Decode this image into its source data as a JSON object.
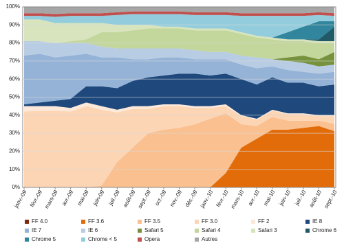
{
  "chart_data": {
    "type": "stacked_area",
    "categories": [
      "janv.-09",
      "févr.-09",
      "mars-09",
      "avr.-09",
      "mai-09",
      "juin-09",
      "juil.-09",
      "août-09",
      "sept.-09",
      "oct.-09",
      "nov.-09",
      "déc.-09",
      "janv.-10",
      "févr.-10",
      "mars-10",
      "avr.-10",
      "mai-10",
      "juin-10",
      "juil.-10",
      "août-10",
      "sept.-10"
    ],
    "ylim": [
      0,
      100
    ],
    "yticks": [
      {
        "value": 0,
        "label": "0%"
      },
      {
        "value": 10,
        "label": "10%"
      },
      {
        "value": 20,
        "label": "20%"
      },
      {
        "value": 30,
        "label": "30%"
      },
      {
        "value": 40,
        "label": "40%"
      },
      {
        "value": 50,
        "label": "50%"
      },
      {
        "value": 60,
        "label": "60%"
      },
      {
        "value": 70,
        "label": "70%"
      },
      {
        "value": 80,
        "label": "80%"
      },
      {
        "value": 90,
        "label": "90%"
      },
      {
        "value": 100,
        "label": "100%"
      }
    ],
    "grid": true,
    "series": [
      {
        "name": "FF 4.0",
        "color": "#7f2a0c",
        "values": [
          0,
          0,
          0,
          0,
          0,
          0,
          0,
          0,
          0,
          0,
          0,
          0,
          0,
          0,
          0,
          0,
          0,
          0,
          0,
          0,
          0.2
        ]
      },
      {
        "name": "FF 3.6",
        "color": "#e36c0a",
        "values": [
          0,
          0,
          0,
          0,
          0,
          0,
          0,
          0,
          0,
          0,
          0,
          0,
          0,
          8,
          22,
          27,
          32,
          32,
          33,
          34,
          31
        ]
      },
      {
        "name": "FF 3.5",
        "color": "#fac090",
        "values": [
          0,
          0,
          0,
          0,
          0,
          1,
          14,
          22,
          30,
          32,
          33,
          35,
          38,
          33,
          13,
          7,
          7,
          5,
          4,
          3,
          4
        ]
      },
      {
        "name": "FF 3.0",
        "color": "#fcd5b5",
        "values": [
          42,
          42.5,
          42.5,
          42,
          45,
          42,
          27.5,
          21.5,
          13.5,
          13,
          12,
          9,
          6,
          4,
          4.5,
          3.5,
          3.5,
          3.5,
          3.5,
          2.5,
          4.3
        ]
      },
      {
        "name": "FF 2",
        "color": "#fde9d9",
        "values": [
          3,
          2.5,
          2.5,
          2,
          2,
          2,
          1.5,
          1.5,
          1.5,
          1,
          1,
          1,
          1,
          1,
          0.5,
          0.5,
          0.5,
          0.5,
          0.5,
          0.5,
          0.5
        ]
      },
      {
        "name": "IE 8",
        "color": "#1f497d",
        "values": [
          1,
          2,
          3,
          5,
          9,
          11,
          12,
          14,
          16,
          16,
          17,
          18,
          17,
          17,
          20,
          19,
          18,
          17,
          17,
          16,
          17
        ]
      },
      {
        "name": "IE 7",
        "color": "#95b3d7",
        "values": [
          27,
          27,
          24,
          24,
          18,
          16,
          17,
          12,
          10,
          10,
          9,
          8,
          9,
          8,
          8,
          9,
          6,
          7,
          6,
          7,
          7
        ]
      },
      {
        "name": "IE 6",
        "color": "#b8cce4",
        "values": [
          8,
          7,
          8,
          7,
          6,
          6,
          5,
          6,
          6,
          5,
          5,
          5,
          4,
          4,
          5,
          6,
          4,
          5,
          5,
          4,
          4
        ]
      },
      {
        "name": "Safari 5",
        "color": "#76923c",
        "values": [
          0,
          0,
          0,
          0,
          0,
          0,
          0,
          0,
          0,
          0,
          0,
          0,
          0,
          0,
          0,
          0,
          0,
          2,
          4,
          4,
          7
        ]
      },
      {
        "name": "Safari 4",
        "color": "#c3d69b",
        "values": [
          0,
          0,
          0,
          1,
          2,
          8,
          9,
          10,
          11,
          11,
          11,
          11,
          12,
          12,
          12,
          11,
          11,
          9,
          8,
          9,
          5
        ]
      },
      {
        "name": "Safari 3",
        "color": "#d7e4bd",
        "values": [
          12,
          12,
          11,
          10,
          9,
          5,
          4,
          3,
          2,
          1,
          1,
          1,
          1,
          1,
          1,
          1,
          1,
          1,
          1,
          1,
          1
        ]
      },
      {
        "name": "Chrome 6",
        "color": "#215967",
        "values": [
          0,
          0,
          0,
          0,
          0,
          0,
          0,
          0,
          0,
          0,
          0,
          0,
          0,
          0,
          0,
          0,
          0,
          0,
          0,
          1,
          8
        ]
      },
      {
        "name": "Chrome 5",
        "color": "#31859c",
        "values": [
          0,
          0,
          0,
          0,
          0,
          0,
          0,
          0,
          0,
          0,
          0,
          0,
          0,
          0,
          0,
          0,
          0,
          4,
          7,
          10,
          3
        ]
      },
      {
        "name": "Chrome < 5",
        "color": "#93cddd",
        "values": [
          2,
          2,
          3.5,
          4,
          4,
          4,
          5.5,
          6,
          6,
          7,
          7,
          7.5,
          7.5,
          7.5,
          9,
          11,
          12,
          9,
          6,
          3.5,
          3
        ]
      },
      {
        "name": "Opera",
        "color": "#c0504d",
        "values": [
          1.5,
          1.5,
          1.5,
          1.5,
          1.5,
          1.5,
          1.5,
          1.5,
          1.5,
          1.5,
          1.5,
          1.5,
          1.5,
          1.5,
          1.5,
          1.5,
          1.5,
          1.5,
          1.5,
          1.5,
          1.5
        ]
      },
      {
        "name": "Autres",
        "color": "#a6a6a6",
        "values": [
          3.5,
          3.5,
          4,
          3.5,
          3.5,
          3.5,
          3,
          2.5,
          2.5,
          2.5,
          2.5,
          3,
          3,
          3,
          3.5,
          3.5,
          3.5,
          3.5,
          3.5,
          3,
          3.5
        ]
      }
    ]
  }
}
